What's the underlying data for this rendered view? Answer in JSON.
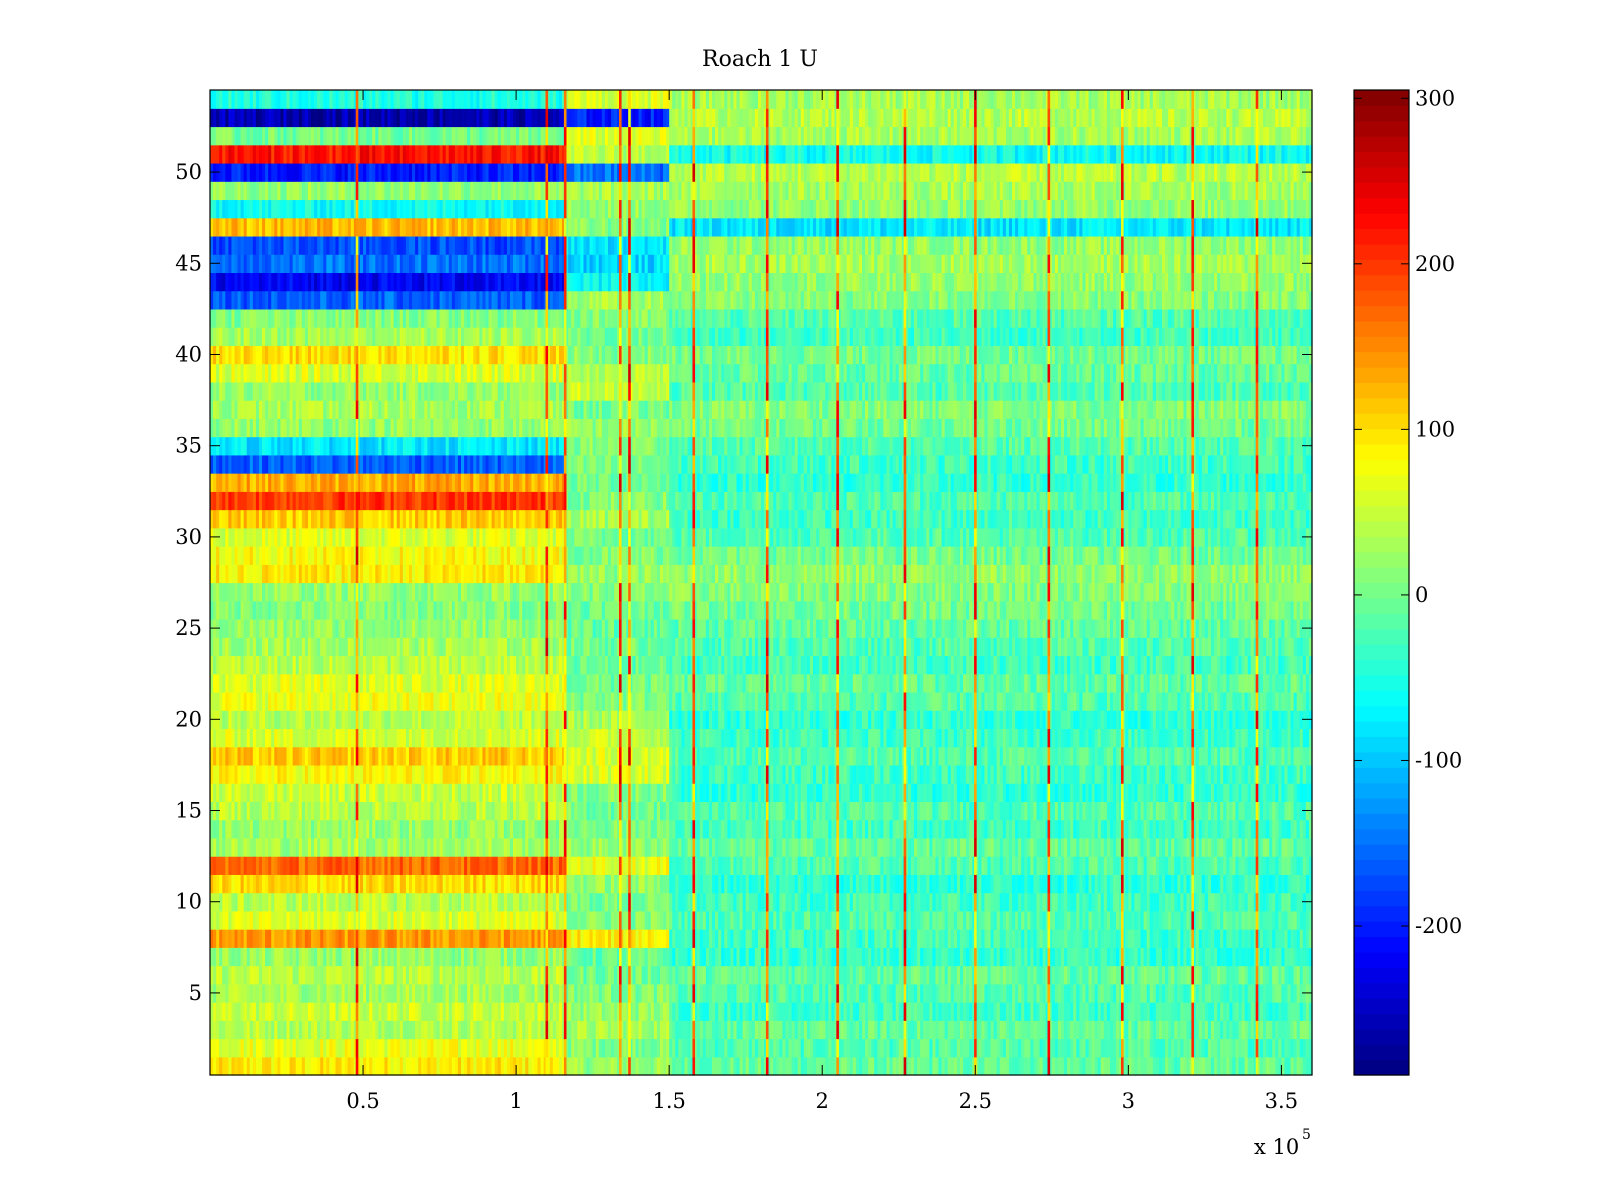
{
  "chart_data": {
    "type": "heatmap",
    "title": "Roach 1 U",
    "xlabel": "",
    "ylabel": "",
    "x_multiplier_label": "x 10",
    "x_multiplier_exponent": "5",
    "xlim": [
      0,
      3.6
    ],
    "ylim": [
      0.5,
      54.5
    ],
    "x_ticks": [
      0.5,
      1,
      1.5,
      2,
      2.5,
      3,
      3.5
    ],
    "x_tick_labels": [
      "0.5",
      "1",
      "1.5",
      "2",
      "2.5",
      "3",
      "3.5"
    ],
    "y_ticks": [
      5,
      10,
      15,
      20,
      25,
      30,
      35,
      40,
      45,
      50
    ],
    "y_tick_labels": [
      "5",
      "10",
      "15",
      "20",
      "25",
      "30",
      "35",
      "40",
      "45",
      "50"
    ],
    "n_rows": 54,
    "colormap": "jet",
    "clim": [
      -290,
      305
    ],
    "colorbar": {
      "ticks": [
        -200,
        -100,
        0,
        100,
        200,
        300
      ],
      "tick_labels": [
        "-200",
        "-100",
        "0",
        "100",
        "200",
        "300"
      ]
    },
    "segment_boundaries_x": [
      1.16,
      1.5
    ],
    "early_segment_row_values": [
      90,
      70,
      40,
      50,
      30,
      40,
      20,
      140,
      60,
      40,
      100,
      170,
      30,
      20,
      40,
      50,
      80,
      110,
      60,
      40,
      70,
      60,
      40,
      30,
      20,
      10,
      20,
      90,
      80,
      60,
      110,
      200,
      130,
      -160,
      -80,
      20,
      30,
      20,
      60,
      100,
      30,
      10,
      -160,
      -220,
      -150,
      -170,
      120,
      -60,
      20,
      -200,
      220,
      0,
      -260,
      -50
    ],
    "middle_segment_row_values": [
      20,
      10,
      30,
      20,
      10,
      0,
      -10,
      90,
      10,
      0,
      20,
      70,
      20,
      10,
      0,
      10,
      60,
      60,
      50,
      30,
      10,
      0,
      -10,
      0,
      -10,
      0,
      10,
      20,
      10,
      0,
      30,
      10,
      0,
      0,
      10,
      20,
      0,
      50,
      40,
      10,
      0,
      10,
      30,
      -70,
      -90,
      -80,
      10,
      20,
      30,
      -150,
      40,
      60,
      -200,
      60
    ],
    "late_segment_row_values": [
      -10,
      -20,
      -10,
      -30,
      -20,
      -10,
      -40,
      -30,
      -20,
      -30,
      -40,
      -20,
      -10,
      -30,
      -20,
      -40,
      -30,
      -20,
      -30,
      -40,
      -20,
      -10,
      -30,
      -20,
      -10,
      0,
      10,
      20,
      0,
      -20,
      -30,
      -20,
      -40,
      -30,
      -20,
      0,
      10,
      -20,
      -10,
      0,
      -30,
      -20,
      10,
      20,
      30,
      20,
      -80,
      20,
      30,
      40,
      -60,
      30,
      40,
      30
    ],
    "spike_columns_x": [
      0.48,
      1.1,
      1.16,
      1.34,
      1.37,
      1.58,
      1.82,
      2.05,
      2.27,
      2.5,
      2.74,
      2.98,
      3.21,
      3.42
    ]
  }
}
